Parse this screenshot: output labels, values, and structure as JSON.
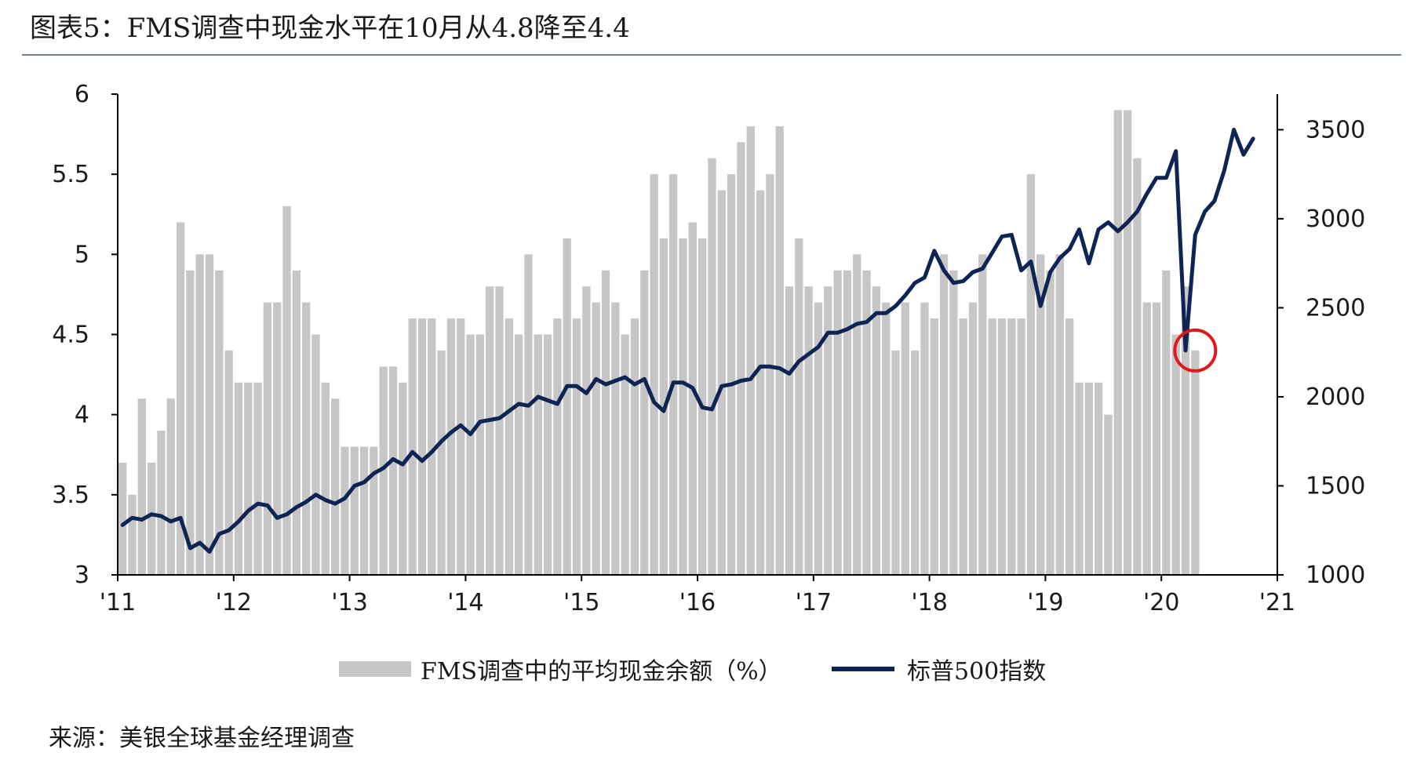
{
  "title": "图表5：FMS调查中现金水平在10月从4.8降至4.4",
  "source": "来源：美银全球基金经理调查",
  "colors": {
    "bars": "#c6c6c6",
    "line": "#0d2454",
    "highlight": "#e01818",
    "axis": "#000000"
  },
  "chart_data": {
    "type": "bar+line",
    "x_ticks": [
      "'11",
      "'12",
      "'13",
      "'14",
      "'15",
      "'16",
      "'17",
      "'18",
      "'19",
      "'20",
      "'21"
    ],
    "y_left": {
      "min": 3,
      "max": 6,
      "ticks": [
        "3",
        "3.5",
        "4",
        "4.5",
        "5",
        "5.5",
        "6"
      ]
    },
    "y_right": {
      "min": 1000,
      "max": 3700,
      "ticks": [
        "1000",
        "1500",
        "2000",
        "2500",
        "3000",
        "3500"
      ]
    },
    "legend_placement": "bottom",
    "series": [
      {
        "name": "FMS调查中的平均现金余额（%）",
        "type": "bar",
        "axis": "left",
        "start": "2011-01",
        "frequency": "monthly",
        "values": [
          3.7,
          3.5,
          4.1,
          3.7,
          3.9,
          4.1,
          5.2,
          4.9,
          5.0,
          5.0,
          4.9,
          4.4,
          4.2,
          4.2,
          4.2,
          4.7,
          4.7,
          5.3,
          4.9,
          4.7,
          4.5,
          4.2,
          4.1,
          3.8,
          3.8,
          3.8,
          3.8,
          4.3,
          4.3,
          4.2,
          4.6,
          4.6,
          4.6,
          4.4,
          4.6,
          4.6,
          4.5,
          4.5,
          4.8,
          4.8,
          4.6,
          4.5,
          5.0,
          4.5,
          4.5,
          4.6,
          5.1,
          4.6,
          4.8,
          4.7,
          4.9,
          4.7,
          4.5,
          4.6,
          4.9,
          5.5,
          5.1,
          5.5,
          5.1,
          5.2,
          5.1,
          5.6,
          5.4,
          5.5,
          5.7,
          5.8,
          5.4,
          5.5,
          5.8,
          4.8,
          5.1,
          4.8,
          4.7,
          4.8,
          4.9,
          4.9,
          5.0,
          4.9,
          4.8,
          4.7,
          4.4,
          4.7,
          4.4,
          4.7,
          4.6,
          5.0,
          4.9,
          4.6,
          4.7,
          5.0,
          4.6,
          4.6,
          4.6,
          4.6,
          5.5,
          5.0,
          4.9,
          5.0,
          4.6,
          4.2,
          4.2,
          4.2,
          4.0,
          5.9,
          5.9,
          5.6,
          4.7,
          4.7,
          4.9,
          4.5,
          4.8,
          4.4
        ]
      },
      {
        "name": "标普500指数",
        "type": "line",
        "axis": "right",
        "points": [
          [
            "2011-01",
            1280
          ],
          [
            "2011-02",
            1320
          ],
          [
            "2011-03",
            1310
          ],
          [
            "2011-04",
            1340
          ],
          [
            "2011-05",
            1330
          ],
          [
            "2011-06",
            1300
          ],
          [
            "2011-07",
            1320
          ],
          [
            "2011-08",
            1150
          ],
          [
            "2011-09",
            1180
          ],
          [
            "2011-10",
            1130
          ],
          [
            "2011-11",
            1230
          ],
          [
            "2011-12",
            1250
          ],
          [
            "2012-01",
            1300
          ],
          [
            "2012-02",
            1360
          ],
          [
            "2012-03",
            1400
          ],
          [
            "2012-04",
            1390
          ],
          [
            "2012-05",
            1320
          ],
          [
            "2012-06",
            1340
          ],
          [
            "2012-07",
            1380
          ],
          [
            "2012-08",
            1410
          ],
          [
            "2012-09",
            1450
          ],
          [
            "2012-10",
            1420
          ],
          [
            "2012-11",
            1400
          ],
          [
            "2012-12",
            1430
          ],
          [
            "2013-01",
            1500
          ],
          [
            "2013-02",
            1520
          ],
          [
            "2013-03",
            1570
          ],
          [
            "2013-04",
            1600
          ],
          [
            "2013-05",
            1650
          ],
          [
            "2013-06",
            1620
          ],
          [
            "2013-07",
            1690
          ],
          [
            "2013-08",
            1640
          ],
          [
            "2013-09",
            1690
          ],
          [
            "2013-10",
            1750
          ],
          [
            "2013-11",
            1800
          ],
          [
            "2013-12",
            1840
          ],
          [
            "2014-01",
            1790
          ],
          [
            "2014-02",
            1860
          ],
          [
            "2014-03",
            1870
          ],
          [
            "2014-04",
            1880
          ],
          [
            "2014-05",
            1920
          ],
          [
            "2014-06",
            1960
          ],
          [
            "2014-07",
            1950
          ],
          [
            "2014-08",
            2000
          ],
          [
            "2014-09",
            1980
          ],
          [
            "2014-10",
            1960
          ],
          [
            "2014-11",
            2060
          ],
          [
            "2014-12",
            2060
          ],
          [
            "2015-01",
            2020
          ],
          [
            "2015-02",
            2100
          ],
          [
            "2015-03",
            2070
          ],
          [
            "2015-04",
            2090
          ],
          [
            "2015-05",
            2110
          ],
          [
            "2015-06",
            2070
          ],
          [
            "2015-07",
            2100
          ],
          [
            "2015-08",
            1970
          ],
          [
            "2015-09",
            1920
          ],
          [
            "2015-10",
            2080
          ],
          [
            "2015-11",
            2080
          ],
          [
            "2015-12",
            2050
          ],
          [
            "2016-01",
            1940
          ],
          [
            "2016-02",
            1930
          ],
          [
            "2016-03",
            2060
          ],
          [
            "2016-04",
            2070
          ],
          [
            "2016-05",
            2090
          ],
          [
            "2016-06",
            2100
          ],
          [
            "2016-07",
            2170
          ],
          [
            "2016-08",
            2170
          ],
          [
            "2016-09",
            2160
          ],
          [
            "2016-10",
            2130
          ],
          [
            "2016-11",
            2200
          ],
          [
            "2016-12",
            2240
          ],
          [
            "2017-01",
            2280
          ],
          [
            "2017-02",
            2360
          ],
          [
            "2017-03",
            2360
          ],
          [
            "2017-04",
            2380
          ],
          [
            "2017-05",
            2410
          ],
          [
            "2017-06",
            2420
          ],
          [
            "2017-07",
            2470
          ],
          [
            "2017-08",
            2470
          ],
          [
            "2017-09",
            2510
          ],
          [
            "2017-10",
            2570
          ],
          [
            "2017-11",
            2640
          ],
          [
            "2017-12",
            2670
          ],
          [
            "2018-01",
            2820
          ],
          [
            "2018-02",
            2710
          ],
          [
            "2018-03",
            2640
          ],
          [
            "2018-04",
            2650
          ],
          [
            "2018-05",
            2700
          ],
          [
            "2018-06",
            2720
          ],
          [
            "2018-07",
            2810
          ],
          [
            "2018-08",
            2900
          ],
          [
            "2018-09",
            2910
          ],
          [
            "2018-10",
            2710
          ],
          [
            "2018-11",
            2760
          ],
          [
            "2018-12",
            2510
          ],
          [
            "2019-01",
            2700
          ],
          [
            "2019-02",
            2780
          ],
          [
            "2019-03",
            2830
          ],
          [
            "2019-04",
            2940
          ],
          [
            "2019-05",
            2750
          ],
          [
            "2019-06",
            2940
          ],
          [
            "2019-07",
            2980
          ],
          [
            "2019-08",
            2930
          ],
          [
            "2019-09",
            2980
          ],
          [
            "2019-10",
            3040
          ],
          [
            "2019-11",
            3140
          ],
          [
            "2019-12",
            3230
          ],
          [
            "2020-01",
            3230
          ],
          [
            "2020-02",
            3380
          ],
          [
            "2020-03",
            2260
          ],
          [
            "2020-04",
            2910
          ],
          [
            "2020-05",
            3040
          ],
          [
            "2020-06",
            3100
          ],
          [
            "2020-07",
            3270
          ],
          [
            "2020-08",
            3500
          ],
          [
            "2020-09",
            3360
          ],
          [
            "2020-10",
            3450
          ]
        ]
      }
    ]
  }
}
